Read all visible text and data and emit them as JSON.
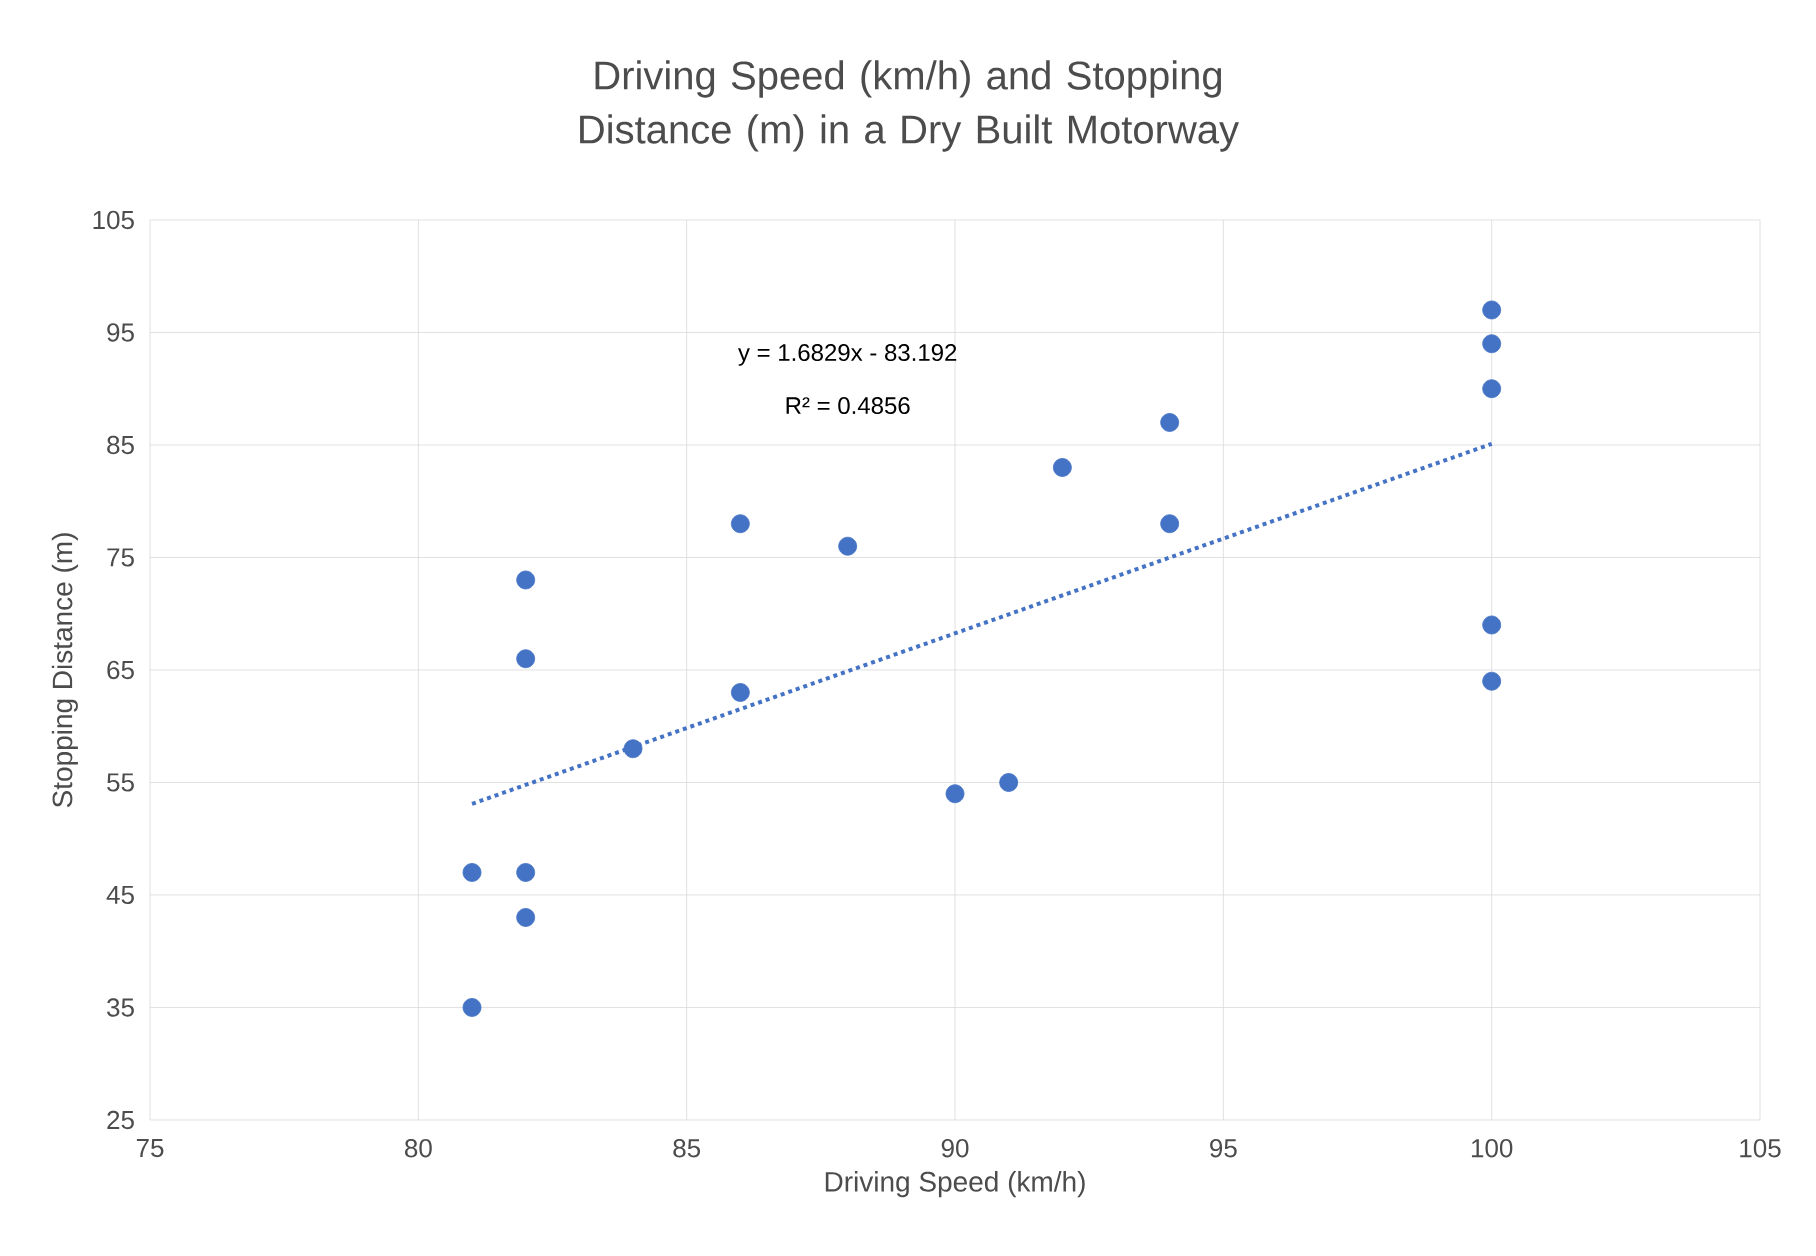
{
  "chart_data": {
    "type": "scatter",
    "title": "Driving Speed (km/h) and Stopping Distance (m) in a Dry Built Motorway",
    "xlabel": "Driving Speed (km/h)",
    "ylabel": "Stopping Distance (m)",
    "xlim": [
      75,
      105
    ],
    "xticks": [
      75,
      80,
      85,
      90,
      95,
      100,
      105
    ],
    "ylim": [
      25,
      105
    ],
    "yticks": [
      25,
      35,
      45,
      55,
      65,
      75,
      85,
      95,
      105
    ],
    "grid": true,
    "annotations": [
      "y = 1.6829x - 83.192",
      "R² = 0.4856"
    ],
    "series": [
      {
        "color": "#4472c4",
        "marker": "circle",
        "x": [
          81,
          81,
          82,
          82,
          82,
          82,
          84,
          86,
          86,
          88,
          90,
          91,
          92,
          94,
          94,
          100,
          100,
          100,
          100,
          100
        ],
        "values": [
          47,
          35,
          73,
          66,
          47,
          43,
          58,
          78,
          63,
          76,
          54,
          55,
          83,
          87,
          78,
          97,
          94,
          90,
          69,
          64
        ]
      },
      {
        "type": "line",
        "color": "#4472c4",
        "line_style": "dotted",
        "x": [
          81,
          100
        ],
        "values": [
          53.1,
          85.1
        ]
      }
    ]
  }
}
